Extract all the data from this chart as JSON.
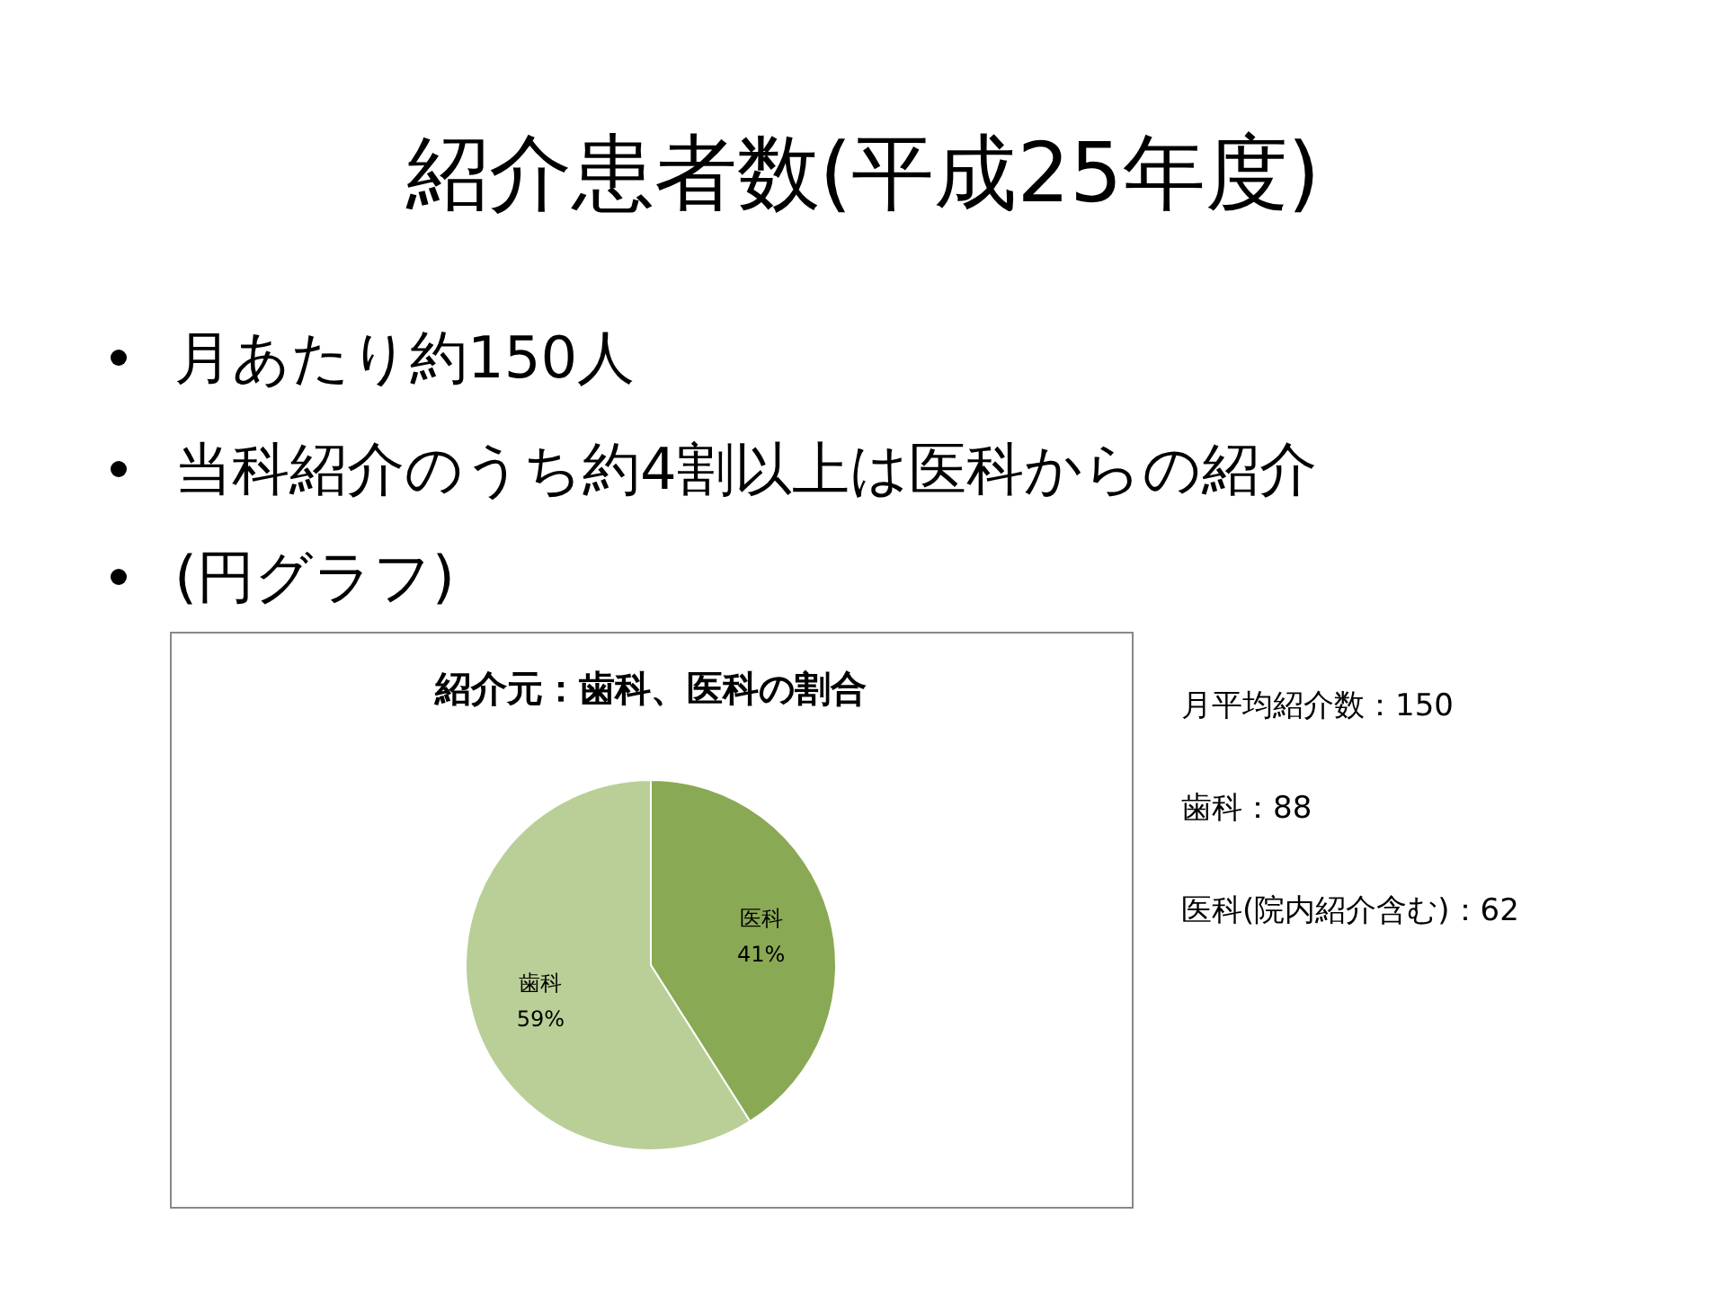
{
  "chart_data": {
    "type": "pie",
    "title": "紹介患者数(平成25年度)",
    "subtitle": "紹介元：歯科、医科の割合",
    "categories": [
      "医科",
      "歯科"
    ],
    "values": [
      41,
      59
    ],
    "colors": [
      "#8aa954",
      "#b9cf97"
    ],
    "value_labels": [
      "41%",
      "59%"
    ],
    "annotations": [
      "月あたり約150人",
      "当科紹介のうち約4割以上は医科からの紹介",
      "(円グラフ)",
      "月平均紹介数：150",
      "歯科：88",
      "医科(院内紹介含む)：62"
    ]
  }
}
